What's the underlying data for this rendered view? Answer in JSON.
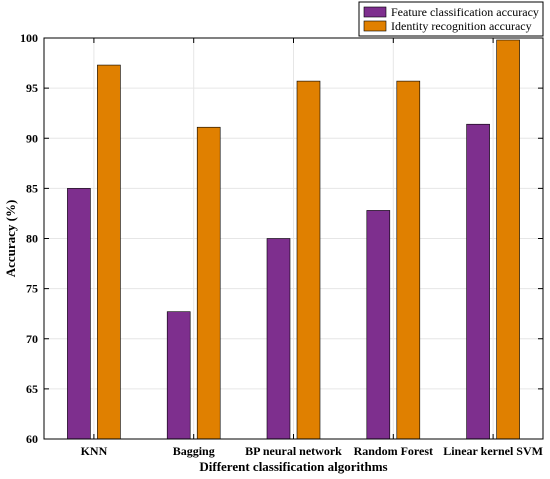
{
  "chart_data": {
    "type": "bar",
    "categories": [
      "KNN",
      "Bagging",
      "BP neural network",
      "Random Forest",
      "Linear kernel SVM"
    ],
    "series": [
      {
        "name": "Feature classification accuracy",
        "color": "#7E2F8E",
        "values": [
          85.0,
          72.7,
          80.0,
          82.8,
          91.4
        ]
      },
      {
        "name": "Identity recognition accuracy",
        "color": "#E08000",
        "values": [
          97.3,
          91.1,
          95.7,
          95.7,
          99.8
        ]
      }
    ],
    "yticks": [
      60,
      65,
      70,
      75,
      80,
      85,
      90,
      95,
      100
    ],
    "ylim": [
      60,
      100
    ],
    "xlabel": "Different classification algorithms",
    "ylabel": "Accuracy (%)",
    "grid": true,
    "legend_position": "top-right"
  }
}
